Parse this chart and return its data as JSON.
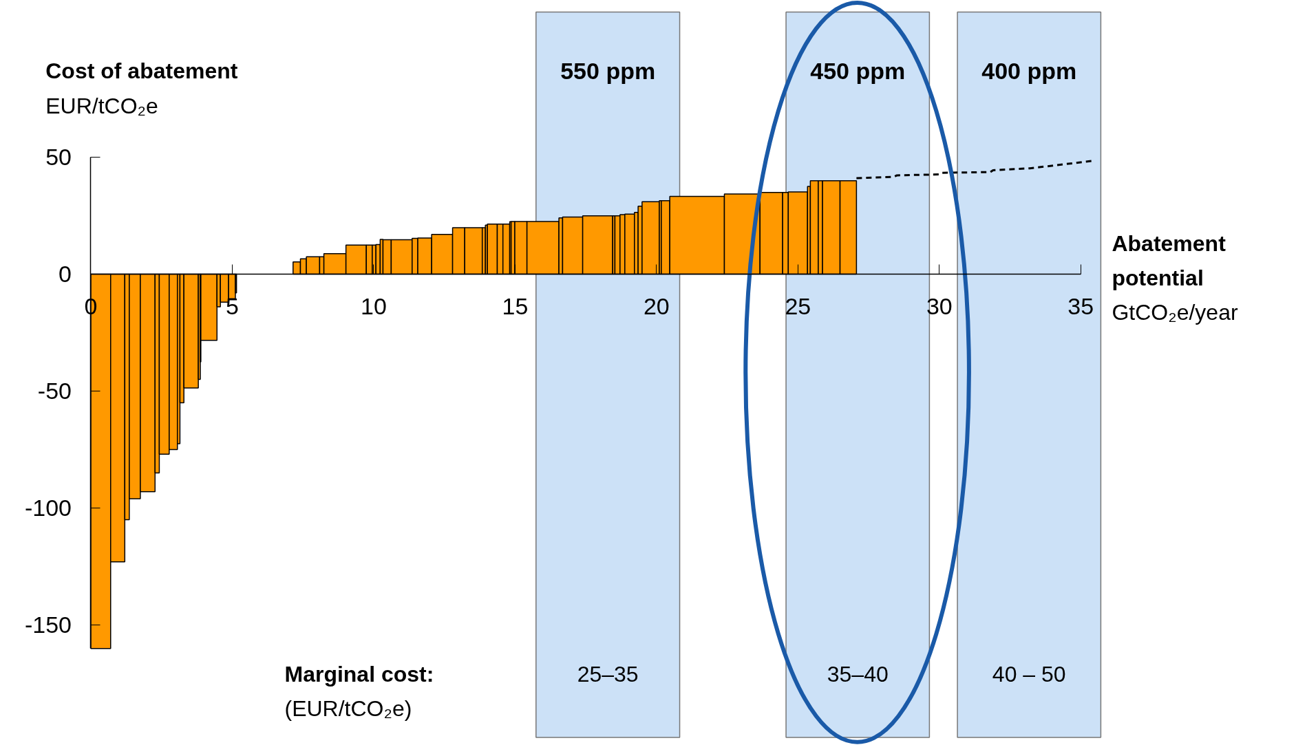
{
  "chart_data": {
    "type": "histogram",
    "ylabel": "Cost of abatement\nEUR/tCO₂e",
    "xlabel": "Abatement potential\nGtCO₂e/year",
    "color": "#ff9900",
    "bins": [
      0,
      0.7,
      1.2,
      1.36,
      1.75,
      2.27,
      2.42,
      2.77,
      3.06,
      3.15,
      3.29,
      3.8,
      3.87,
      3.89,
      4.46,
      4.58,
      4.87,
      5.11,
      5.15,
      7.15,
      7.41,
      7.62,
      8.09,
      8.24,
      9.02,
      9.74,
      9.95,
      10.08,
      10.23,
      10.33,
      10.62,
      11.36,
      11.56,
      12.05,
      12.79,
      13.22,
      13.84,
      13.95,
      14.02,
      14.37,
      14.57,
      14.81,
      14.86,
      14.99,
      15.42,
      16.55,
      16.68,
      17.39,
      18.45,
      18.53,
      18.71,
      18.88,
      19.22,
      19.35,
      19.49,
      20.1,
      20.17,
      20.47,
      22.4,
      23.66,
      24.46,
      24.66,
      25.34,
      25.44,
      25.72,
      25.87,
      26.49,
      27.07
    ],
    "values": [
      -160,
      -123,
      -105,
      -96,
      -93,
      -85,
      -77,
      -75,
      -72.5,
      -55,
      -48.7,
      -45,
      -37.5,
      -28.3,
      -14,
      -12,
      -10.5,
      -8,
      null,
      5.2,
      6.5,
      7.4,
      7.4,
      8.7,
      12.4,
      12.4,
      12.4,
      12.6,
      14.8,
      14.7,
      14.7,
      15.3,
      15.4,
      17,
      19.8,
      19.8,
      19.8,
      20.9,
      21.4,
      21.4,
      21.4,
      22.4,
      22.5,
      22.5,
      22.5,
      24,
      24.4,
      24.9,
      24.9,
      24.9,
      25.4,
      25.6,
      26.4,
      29,
      30.9,
      31.4,
      31.4,
      33.2,
      34.2,
      34.9,
      34.9,
      35.1,
      37.5,
      39.9,
      39.9,
      39.9,
      39.9
    ],
    "series": [
      {
        "type": "line",
        "x": [
          27.07,
          28.4,
          28.5,
          30.0,
          30.1,
          31.8,
          31.9,
          33.2,
          35.5
        ],
        "values": [
          41,
          41.6,
          42.2,
          42.6,
          43.3,
          43.6,
          44.4,
          45.2,
          48.5
        ],
        "color": "#000000",
        "line_style": "dashed"
      }
    ],
    "xlim": [
      -3.2,
      42.55
    ],
    "ylim": [
      -202,
      117
    ],
    "xticks": [
      0,
      5,
      10,
      15,
      20,
      25,
      30,
      35
    ],
    "yticks": [
      -150,
      -100,
      -50,
      0,
      50
    ],
    "bands": [
      {
        "axis": "x",
        "from": 15.74,
        "to": 20.82,
        "label": "550 ppm",
        "color": "#cce1f7"
      },
      {
        "axis": "x",
        "from": 24.58,
        "to": 29.65,
        "label": "450 ppm",
        "color": "#cce1f7"
      },
      {
        "axis": "x",
        "from": 30.64,
        "to": 35.71,
        "label": "400 ppm",
        "color": "#cce1f7"
      }
    ],
    "annotations": [
      "Marginal cost:",
      "(EUR/tCO₂e)",
      "25–35",
      "35–40",
      "40 – 50"
    ],
    "grid": false
  }
}
